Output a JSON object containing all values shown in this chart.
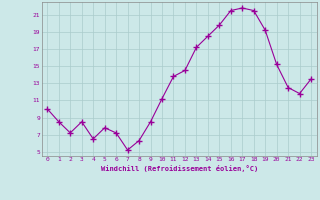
{
  "x": [
    0,
    1,
    2,
    3,
    4,
    5,
    6,
    7,
    8,
    9,
    10,
    11,
    12,
    13,
    14,
    15,
    16,
    17,
    18,
    19,
    20,
    21,
    22,
    23
  ],
  "y": [
    10.0,
    8.5,
    7.2,
    8.5,
    6.5,
    7.8,
    7.2,
    5.2,
    6.3,
    8.5,
    11.2,
    13.8,
    14.5,
    17.2,
    18.5,
    19.8,
    21.5,
    21.8,
    21.5,
    19.2,
    15.2,
    12.5,
    11.8,
    13.5
  ],
  "line_color": "#990099",
  "marker": "+",
  "bg_color": "#cce8e8",
  "grid_color": "#aacccc",
  "xlabel": "Windchill (Refroidissement éolien,°C)",
  "xlabel_color": "#990099",
  "tick_color": "#990099",
  "yticks": [
    5,
    7,
    9,
    11,
    13,
    15,
    17,
    19,
    21
  ],
  "xticks": [
    0,
    1,
    2,
    3,
    4,
    5,
    6,
    7,
    8,
    9,
    10,
    11,
    12,
    13,
    14,
    15,
    16,
    17,
    18,
    19,
    20,
    21,
    22,
    23
  ],
  "ylim": [
    4.5,
    22.5
  ],
  "xlim": [
    -0.5,
    23.5
  ]
}
